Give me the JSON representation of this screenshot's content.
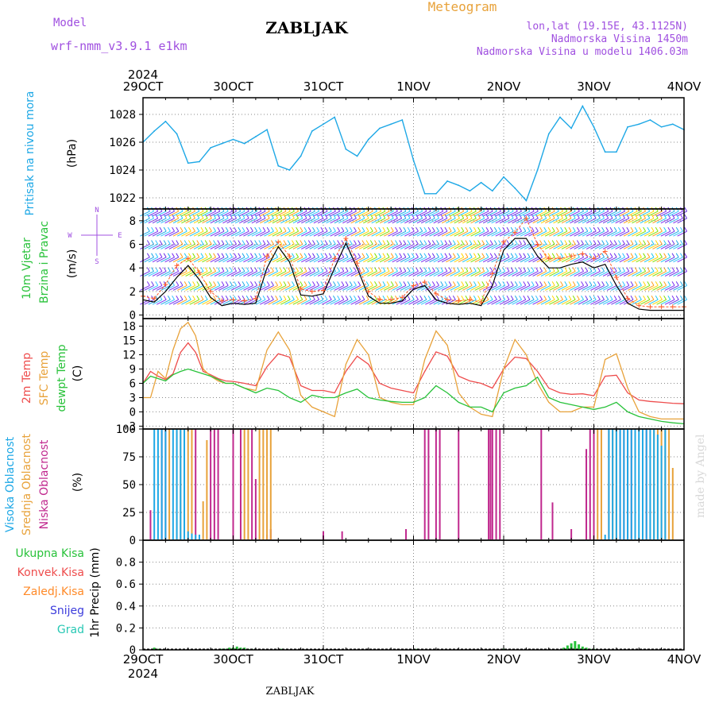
{
  "header": {
    "model_label": "Model",
    "model_name": "wrf-nmm_v3.9.1 e1km",
    "station": "ZABLJAK",
    "meteogram": "Meteogram",
    "coords": "lon,lat (19.15E, 43.1125N)",
    "elevation": "Nadmorska Visina 1450m",
    "model_elevation": "Nadmorska Visina u modelu 1406.03m",
    "footer_station": "ZABLJAK",
    "credit": "made by Angel"
  },
  "colors": {
    "pressure": "#1ea8e6",
    "temp2m": "#ee4c4c",
    "sfc": "#e8a23a",
    "dew": "#28c23a",
    "high_cloud": "#1ea8e6",
    "mid_cloud": "#e8a23a",
    "low_cloud": "#c0288e",
    "wind_speed": "#000000",
    "gust": "#ff5a28",
    "purple_text": "#a050e0",
    "total_precip": "#28c23a",
    "conv_precip": "#ee4c4c",
    "frz_precip": "#ff8a28",
    "snow": "#3c3cdc",
    "graupel": "#28c8b4"
  },
  "chart_data": [
    {
      "type": "line",
      "id": "pressure",
      "ylabel_main": "Pritisak na nivou mora",
      "ylabel_unit": "(hPa)",
      "x_unit": "hours since 29OCT 2024 00 UTC",
      "ylim": [
        1021.2,
        1029.2
      ],
      "yticks": [
        "1022",
        "1024",
        "1026",
        "1028"
      ],
      "xtick_labels": [
        "29OCT",
        "30OCT",
        "31OCT",
        "1NOV",
        "2NOV",
        "3NOV",
        "4NOV"
      ],
      "xtick_year": "2024",
      "grid": true,
      "series": [
        {
          "x": [
            0,
            3,
            6,
            9,
            12,
            15,
            18,
            21,
            24,
            27,
            30,
            33,
            36,
            39,
            42,
            45,
            48,
            51,
            54,
            57,
            60,
            63,
            66,
            69,
            72,
            75,
            78,
            81,
            84,
            87,
            90,
            93,
            96,
            99,
            102,
            105,
            108,
            111,
            114,
            117,
            120,
            123,
            126,
            129,
            132,
            135,
            138,
            141,
            144
          ],
          "y": [
            1026.0,
            1026.8,
            1027.5,
            1026.6,
            1024.5,
            1024.6,
            1025.6,
            1025.9,
            1026.2,
            1025.9,
            1026.4,
            1026.9,
            1024.3,
            1024.0,
            1025.0,
            1026.8,
            1027.3,
            1027.8,
            1025.5,
            1025.0,
            1026.2,
            1027.0,
            1027.3,
            1027.6,
            1024.7,
            1022.3,
            1022.3,
            1023.2,
            1022.9,
            1022.5,
            1023.1,
            1022.5,
            1023.5,
            1022.7,
            1021.8,
            1024.0,
            1026.6,
            1027.8,
            1027.0,
            1028.6,
            1027.1,
            1025.3,
            1025.3,
            1027.1,
            1027.3,
            1027.6,
            1027.1,
            1027.3,
            1026.9
          ]
        }
      ]
    },
    {
      "type": "line",
      "id": "wind",
      "ylabel_main": "10m Vjetar",
      "ylabel_sub": "Brzina i Pravac",
      "ylabel_unit": "(m/s)",
      "compass": {
        "n": "N",
        "s": "S",
        "e": "E",
        "w": "W"
      },
      "ylim": [
        -0.3,
        9
      ],
      "yticks": [
        "0",
        "2",
        "4",
        "6",
        "8"
      ],
      "grid": true,
      "series": [
        {
          "name": "speed",
          "x": [
            0,
            3,
            6,
            9,
            12,
            15,
            18,
            21,
            24,
            27,
            30,
            33,
            36,
            39,
            42,
            45,
            48,
            51,
            54,
            57,
            60,
            63,
            66,
            69,
            72,
            75,
            78,
            81,
            84,
            87,
            90,
            93,
            96,
            99,
            102,
            105,
            108,
            111,
            114,
            117,
            120,
            123,
            126,
            129,
            132,
            135,
            138,
            141,
            144
          ],
          "y": [
            1.3,
            1.1,
            2.0,
            3.2,
            4.2,
            3.0,
            1.5,
            0.8,
            1.0,
            0.9,
            1.0,
            4.0,
            5.8,
            4.5,
            1.7,
            1.6,
            1.8,
            4.0,
            6.1,
            4.0,
            1.6,
            1.0,
            1.0,
            1.2,
            2.2,
            2.5,
            1.3,
            1.0,
            0.9,
            1.0,
            0.8,
            2.5,
            5.5,
            6.5,
            6.5,
            5.0,
            4.0,
            4.0,
            4.3,
            4.5,
            4.0,
            4.3,
            2.5,
            1.0,
            0.5,
            0.4,
            0.4,
            0.4,
            0.4
          ]
        },
        {
          "name": "gust",
          "x": [
            0,
            3,
            6,
            9,
            12,
            15,
            18,
            21,
            24,
            27,
            30,
            33,
            36,
            39,
            42,
            45,
            48,
            51,
            54,
            57,
            60,
            63,
            66,
            69,
            72,
            75,
            78,
            81,
            84,
            87,
            90,
            93,
            96,
            99,
            102,
            105,
            108,
            111,
            114,
            117,
            120,
            123,
            126,
            129,
            132,
            135,
            138,
            141,
            144
          ],
          "y": [
            1.6,
            1.4,
            2.6,
            4.2,
            4.8,
            3.6,
            2.0,
            1.2,
            1.3,
            1.2,
            1.4,
            5.0,
            6.2,
            5.0,
            2.2,
            2.0,
            2.1,
            4.8,
            6.5,
            4.4,
            2.0,
            1.3,
            1.3,
            1.5,
            2.5,
            2.8,
            1.8,
            1.3,
            1.2,
            1.3,
            1.1,
            3.5,
            6.2,
            7.0,
            8.2,
            6.0,
            4.8,
            4.8,
            5.0,
            5.2,
            4.8,
            5.4,
            3.2,
            1.4,
            0.8,
            0.7,
            0.7,
            0.7,
            0.7
          ]
        }
      ]
    },
    {
      "type": "line",
      "id": "temperature",
      "ylabel_lines": [
        "2m Temp",
        "SFC Temp",
        "dewpt Temp"
      ],
      "ylabel_unit": "(C)",
      "ylim": [
        -3.6,
        19.6
      ],
      "yticks": [
        "-3",
        "0",
        "3",
        "6",
        "9",
        "12",
        "15",
        "18"
      ],
      "grid": true,
      "series": [
        {
          "name": "2m Temp",
          "x": [
            0,
            2,
            4,
            6,
            8,
            10,
            12,
            14,
            16,
            18,
            20,
            22,
            24,
            27,
            30,
            33,
            36,
            39,
            42,
            45,
            48,
            51,
            54,
            57,
            60,
            63,
            66,
            69,
            72,
            75,
            78,
            81,
            84,
            87,
            90,
            93,
            96,
            99,
            102,
            105,
            108,
            111,
            114,
            117,
            120,
            123,
            126,
            129,
            132,
            135,
            138,
            141,
            144
          ],
          "y": [
            6.0,
            8.5,
            7.5,
            6.8,
            8.0,
            12.5,
            14.5,
            12.5,
            8.5,
            7.8,
            7.0,
            6.5,
            6.4,
            6.0,
            5.5,
            9.5,
            12.2,
            11.5,
            5.5,
            4.5,
            4.5,
            4.0,
            8.5,
            11.7,
            10.0,
            6.0,
            5.0,
            4.5,
            4.0,
            8.5,
            12.6,
            11.7,
            7.5,
            6.5,
            6.0,
            5.0,
            9.0,
            11.5,
            11.2,
            8.5,
            5.0,
            4.0,
            3.7,
            3.8,
            3.4,
            7.5,
            7.7,
            4.0,
            2.5,
            2.2,
            2.0,
            1.8,
            1.7
          ]
        },
        {
          "name": "SFC Temp",
          "x": [
            0,
            2,
            4,
            6,
            8,
            10,
            12,
            14,
            16,
            18,
            20,
            22,
            24,
            27,
            30,
            33,
            36,
            39,
            42,
            45,
            48,
            51,
            54,
            57,
            60,
            63,
            66,
            69,
            72,
            75,
            78,
            81,
            84,
            87,
            90,
            93,
            96,
            99,
            102,
            105,
            108,
            111,
            114,
            117,
            120,
            123,
            126,
            129,
            132,
            135,
            138,
            141,
            144
          ],
          "y": [
            3.0,
            3.0,
            8.5,
            7.0,
            13.0,
            17.5,
            18.8,
            16.0,
            9.0,
            7.5,
            6.5,
            6.0,
            6.0,
            5.0,
            4.5,
            13.0,
            16.8,
            13.0,
            3.5,
            1.0,
            0.0,
            -1.0,
            10.0,
            15.2,
            12.0,
            3.0,
            2.0,
            1.5,
            1.5,
            11.0,
            17.0,
            14.0,
            4.0,
            1.0,
            -0.5,
            -1.0,
            9.0,
            15.2,
            12.0,
            6.0,
            2.0,
            0.0,
            0.0,
            1.0,
            1.0,
            11.0,
            12.2,
            5.0,
            0.0,
            -1.0,
            -1.5,
            -1.5,
            -1.5
          ]
        },
        {
          "name": "dewpt Temp",
          "x": [
            0,
            2,
            4,
            6,
            8,
            10,
            12,
            14,
            16,
            18,
            20,
            22,
            24,
            27,
            30,
            33,
            36,
            39,
            42,
            45,
            48,
            51,
            54,
            57,
            60,
            63,
            66,
            69,
            72,
            75,
            78,
            81,
            84,
            87,
            90,
            93,
            96,
            99,
            102,
            105,
            108,
            111,
            114,
            117,
            120,
            123,
            126,
            129,
            132,
            135,
            138,
            141,
            144
          ],
          "y": [
            6.0,
            7.5,
            7.0,
            6.5,
            7.8,
            8.5,
            9.0,
            8.5,
            8.0,
            7.5,
            6.8,
            6.0,
            6.0,
            5.0,
            4.0,
            5.0,
            4.5,
            3.0,
            2.0,
            3.5,
            3.0,
            3.0,
            4.0,
            4.8,
            3.0,
            2.5,
            2.2,
            2.0,
            2.0,
            3.0,
            5.5,
            4.0,
            2.0,
            1.0,
            1.0,
            0.0,
            4.0,
            5.0,
            5.5,
            7.3,
            3.0,
            2.0,
            1.5,
            1.0,
            0.5,
            1.0,
            2.0,
            0.0,
            -1.0,
            -1.5,
            -2.0,
            -2.3,
            -2.5
          ]
        }
      ]
    },
    {
      "type": "bar",
      "id": "clouds",
      "ylabel_lines": [
        "Visoka Oblacnost",
        "Srednja Oblacnost",
        "Niska Oblacnost"
      ],
      "ylabel_unit": "(%)",
      "ylim": [
        0,
        100
      ],
      "yticks": [
        "0",
        "25",
        "50",
        "75",
        "100"
      ],
      "grid": true,
      "series": [
        {
          "name": "Niska Oblacnost",
          "x": [
            2,
            5,
            6,
            14,
            18,
            19,
            20,
            24,
            26,
            29,
            30,
            33,
            34,
            48,
            53,
            70,
            75,
            76,
            78,
            79,
            84,
            92,
            92.5,
            93,
            94,
            95,
            106,
            109,
            114,
            118,
            119,
            120,
            124,
            127,
            128,
            129,
            130,
            134
          ],
          "y": [
            27,
            100,
            100,
            100,
            100,
            100,
            100,
            100,
            100,
            100,
            55,
            5,
            10,
            8,
            8,
            10,
            100,
            100,
            100,
            100,
            100,
            100,
            100,
            100,
            100,
            100,
            100,
            34,
            10,
            82,
            100,
            100,
            100,
            100,
            100,
            100,
            100,
            100
          ]
        },
        {
          "name": "Srednja Oblacnost",
          "x": [
            7,
            9,
            10,
            11,
            12,
            13,
            16,
            17,
            27,
            28,
            31,
            32,
            33,
            34,
            121,
            122,
            124,
            125,
            126,
            135,
            136,
            137,
            138,
            139,
            140,
            141
          ],
          "y": [
            100,
            100,
            100,
            100,
            100,
            100,
            35,
            90,
            100,
            100,
            100,
            100,
            100,
            100,
            100,
            100,
            100,
            100,
            100,
            100,
            100,
            100,
            100,
            100,
            100,
            65
          ]
        },
        {
          "name": "Visoka Oblacnost",
          "x": [
            3,
            4,
            5,
            6,
            8,
            9,
            10,
            11,
            12,
            13,
            14,
            15,
            123,
            124,
            125,
            126,
            127,
            128,
            129,
            130,
            131,
            132,
            133,
            134,
            135,
            136,
            137,
            138,
            139
          ],
          "y": [
            100,
            100,
            100,
            100,
            100,
            100,
            100,
            100,
            8,
            6,
            5,
            5,
            5,
            100,
            100,
            100,
            100,
            100,
            100,
            100,
            100,
            100,
            100,
            100,
            100,
            100,
            95,
            85,
            100
          ]
        }
      ]
    },
    {
      "type": "bar",
      "id": "precip",
      "ylabel_main": "1hr Precip (mm)",
      "legend": [
        "Ukupna Kisa",
        "Konvek.Kisa",
        "Zaledj.Kisa",
        "Snijeg",
        "Grad"
      ],
      "ylim": [
        0,
        1.0
      ],
      "yticks": [
        "0",
        "0.2",
        "0.4",
        "0.6",
        "0.8"
      ],
      "grid": true,
      "series": [
        {
          "name": "Ukupna Kisa",
          "x": [
            3,
            4,
            21,
            22,
            23,
            24,
            25,
            26,
            27,
            28,
            29,
            37,
            73,
            96,
            112,
            113,
            114,
            115,
            116,
            117,
            118,
            119,
            120
          ],
          "y": [
            0.02,
            0.01,
            0.01,
            0.01,
            0.02,
            0.02,
            0.03,
            0.02,
            0.02,
            0.01,
            0.01,
            0.01,
            0.01,
            0.01,
            0.02,
            0.04,
            0.06,
            0.08,
            0.05,
            0.03,
            0.02,
            0.01,
            0.01
          ]
        }
      ]
    }
  ]
}
